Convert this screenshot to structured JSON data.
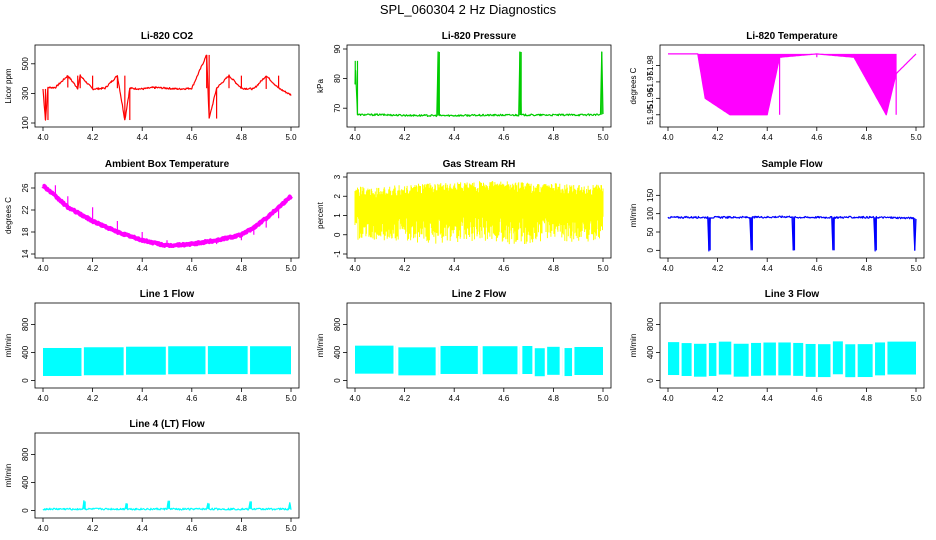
{
  "page": {
    "title": "SPL_060304  2 Hz Diagnostics"
  },
  "chart_data": [
    {
      "type": "line",
      "title": "Li-820 CO2",
      "ylabel": "Licor ppm",
      "xlim": [
        4.0,
        5.0
      ],
      "ylim": [
        100,
        600
      ],
      "xticks": [
        "4.0",
        "4.2",
        "4.4",
        "4.6",
        "4.8",
        "5.0"
      ],
      "yticks": [
        "100",
        "300",
        "500"
      ],
      "color": "#ff0000",
      "series": [
        {
          "x": [
            4.0,
            4.01,
            4.02,
            4.05,
            4.1,
            4.14,
            4.15,
            4.2,
            4.25,
            4.3,
            4.33,
            4.35,
            4.4,
            4.45,
            4.5,
            4.55,
            4.6,
            4.66,
            4.67,
            4.7,
            4.75,
            4.8,
            4.85,
            4.9,
            4.95,
            5.0
          ],
          "y": [
            330,
            120,
            340,
            340,
            420,
            335,
            420,
            330,
            335,
            420,
            120,
            335,
            330,
            340,
            335,
            330,
            335,
            560,
            130,
            335,
            420,
            335,
            330,
            420,
            335,
            290
          ]
        }
      ]
    },
    {
      "type": "line",
      "title": "Li-820 Pressure",
      "ylabel": "kPa",
      "xlim": [
        4.0,
        5.0
      ],
      "ylim": [
        65,
        90
      ],
      "xticks": [
        "4.0",
        "4.2",
        "4.4",
        "4.6",
        "4.8",
        "5.0"
      ],
      "yticks": [
        "70",
        "80",
        "90"
      ],
      "color": "#00cc00",
      "series": [
        {
          "x": [
            4.0,
            4.001,
            4.01,
            4.1,
            4.2,
            4.33,
            4.335,
            4.34,
            4.5,
            4.66,
            4.665,
            4.67,
            4.8,
            4.99,
            4.995,
            5.0
          ],
          "y": [
            78,
            86,
            67.8,
            67.8,
            67.6,
            67.5,
            89,
            67.5,
            67.6,
            67.7,
            89,
            67.7,
            67.7,
            67.8,
            89,
            67.8
          ]
        }
      ]
    },
    {
      "type": "line",
      "title": "Li-820 Temperature",
      "ylabel": "degrees C",
      "xlim": [
        4.0,
        5.0
      ],
      "ylim": [
        51.945,
        51.99
      ],
      "xticks": [
        "4.0",
        "4.2",
        "4.4",
        "4.6",
        "4.8",
        "5.0"
      ],
      "yticks": [
        "51.95",
        "51.96",
        "51.97",
        "51.98"
      ],
      "color": "#ff00ff",
      "series": [
        {
          "x": [
            4.0,
            4.12,
            4.15,
            4.25,
            4.4,
            4.45,
            4.6,
            4.75,
            4.88,
            4.92,
            5.0
          ],
          "y": [
            51.987,
            51.987,
            51.96,
            51.95,
            51.95,
            51.985,
            51.987,
            51.985,
            51.95,
            51.975,
            51.987
          ]
        }
      ]
    },
    {
      "type": "line",
      "title": "Ambient Box Temperature",
      "ylabel": "degrees C",
      "xlim": [
        4.0,
        5.0
      ],
      "ylim": [
        14,
        28
      ],
      "xticks": [
        "4.0",
        "4.2",
        "4.4",
        "4.6",
        "4.8",
        "5.0"
      ],
      "yticks": [
        "14",
        "18",
        "22",
        "26"
      ],
      "color": "#ff00ff",
      "series": [
        {
          "x": [
            4.0,
            4.05,
            4.1,
            4.2,
            4.3,
            4.4,
            4.5,
            4.6,
            4.7,
            4.8,
            4.85,
            4.9,
            4.95,
            5.0
          ],
          "y": [
            26.5,
            24.5,
            22.5,
            20.0,
            18.0,
            16.5,
            15.5,
            15.8,
            16.5,
            17.5,
            18.8,
            20.5,
            22.5,
            24.5
          ]
        }
      ]
    },
    {
      "type": "area",
      "title": "Gas Stream RH",
      "ylabel": "percent",
      "xlim": [
        4.0,
        5.0
      ],
      "ylim": [
        -1,
        3
      ],
      "xticks": [
        "4.0",
        "4.2",
        "4.4",
        "4.6",
        "4.8",
        "5.0"
      ],
      "yticks": [
        "-1",
        "0",
        "1",
        "2",
        "3"
      ],
      "color": "#ffff00",
      "series": [
        {
          "x": [
            4.0,
            4.1,
            4.2,
            4.3,
            4.4,
            4.5,
            4.6,
            4.7,
            4.8,
            4.9,
            5.0
          ],
          "upper": [
            2.5,
            2.5,
            2.6,
            2.7,
            2.7,
            2.8,
            2.8,
            2.7,
            2.7,
            2.6,
            2.6
          ],
          "lower": [
            -0.3,
            -0.3,
            -0.3,
            -0.5,
            -0.4,
            -0.3,
            -0.5,
            -0.5,
            -0.3,
            -0.4,
            -0.3
          ]
        }
      ]
    },
    {
      "type": "line",
      "title": "Sample Flow",
      "ylabel": "ml/min",
      "xlim": [
        4.0,
        5.0
      ],
      "ylim": [
        -10,
        200
      ],
      "xticks": [
        "4.0",
        "4.2",
        "4.4",
        "4.6",
        "4.8",
        "5.0"
      ],
      "yticks": [
        "0",
        "50",
        "100",
        "150"
      ],
      "color": "#0000ff",
      "series": [
        {
          "x": [
            4.0,
            4.16,
            4.165,
            4.17,
            4.33,
            4.335,
            4.34,
            4.5,
            4.505,
            4.51,
            4.66,
            4.665,
            4.67,
            4.83,
            4.835,
            4.84,
            4.99,
            4.995,
            5.0
          ],
          "y": [
            90,
            90,
            0,
            90,
            90,
            0,
            90,
            92,
            0,
            90,
            90,
            0,
            90,
            90,
            0,
            90,
            88,
            0,
            88
          ]
        }
      ]
    },
    {
      "type": "area",
      "title": "Line 1 Flow",
      "ylabel": "ml/min",
      "xlim": [
        4.0,
        5.0
      ],
      "ylim": [
        -50,
        1050
      ],
      "xticks": [
        "4.0",
        "4.2",
        "4.4",
        "4.6",
        "4.8",
        "5.0"
      ],
      "yticks": [
        "0",
        "400",
        "800"
      ],
      "color": "#00ffff",
      "gaps": [
        4.16,
        4.33,
        4.5,
        4.66,
        4.83
      ],
      "series": [
        {
          "upper": 500,
          "lower": 100
        }
      ]
    },
    {
      "type": "area",
      "title": "Line 2 Flow",
      "ylabel": "ml/min",
      "xlim": [
        4.0,
        5.0
      ],
      "ylim": [
        -50,
        1050
      ],
      "xticks": [
        "4.0",
        "4.2",
        "4.4",
        "4.6",
        "4.8",
        "5.0"
      ],
      "yticks": [
        "0",
        "400",
        "800"
      ],
      "color": "#00ffff",
      "gaps": [
        4.16,
        4.17,
        4.33,
        4.34,
        4.5,
        4.51,
        4.66,
        4.67,
        4.72,
        4.77,
        4.83,
        4.84,
        4.88
      ],
      "series": [
        {
          "upper": 500,
          "lower": 100
        }
      ]
    },
    {
      "type": "area",
      "title": "Line 3 Flow",
      "ylabel": "ml/min",
      "xlim": [
        4.0,
        5.0
      ],
      "ylim": [
        -50,
        1050
      ],
      "xticks": [
        "4.0",
        "4.2",
        "4.4",
        "4.6",
        "4.8",
        "5.0"
      ],
      "yticks": [
        "0",
        "400",
        "800"
      ],
      "color": "#00ffff",
      "gaps": [
        4.05,
        4.1,
        4.16,
        4.2,
        4.26,
        4.33,
        4.38,
        4.44,
        4.5,
        4.55,
        4.6,
        4.66,
        4.71,
        4.76,
        4.83,
        4.88
      ],
      "series": [
        {
          "upper": 560,
          "lower": 90
        }
      ]
    },
    {
      "type": "line",
      "title": "Line 4 (LT) Flow",
      "ylabel": "ml/min",
      "xlim": [
        4.0,
        5.0
      ],
      "ylim": [
        -50,
        1050
      ],
      "xticks": [
        "4.0",
        "4.2",
        "4.4",
        "4.6",
        "4.8",
        "5.0"
      ],
      "yticks": [
        "0",
        "400",
        "800"
      ],
      "color": "#00ffff",
      "series": [
        {
          "x": [
            4.0,
            4.16,
            4.165,
            4.17,
            4.33,
            4.335,
            4.34,
            4.5,
            4.505,
            4.51,
            4.66,
            4.665,
            4.67,
            4.83,
            4.835,
            4.84,
            4.99,
            4.995,
            5.0
          ],
          "y": [
            20,
            20,
            130,
            20,
            20,
            100,
            20,
            20,
            140,
            20,
            20,
            100,
            20,
            20,
            130,
            20,
            20,
            110,
            20
          ]
        }
      ]
    }
  ]
}
